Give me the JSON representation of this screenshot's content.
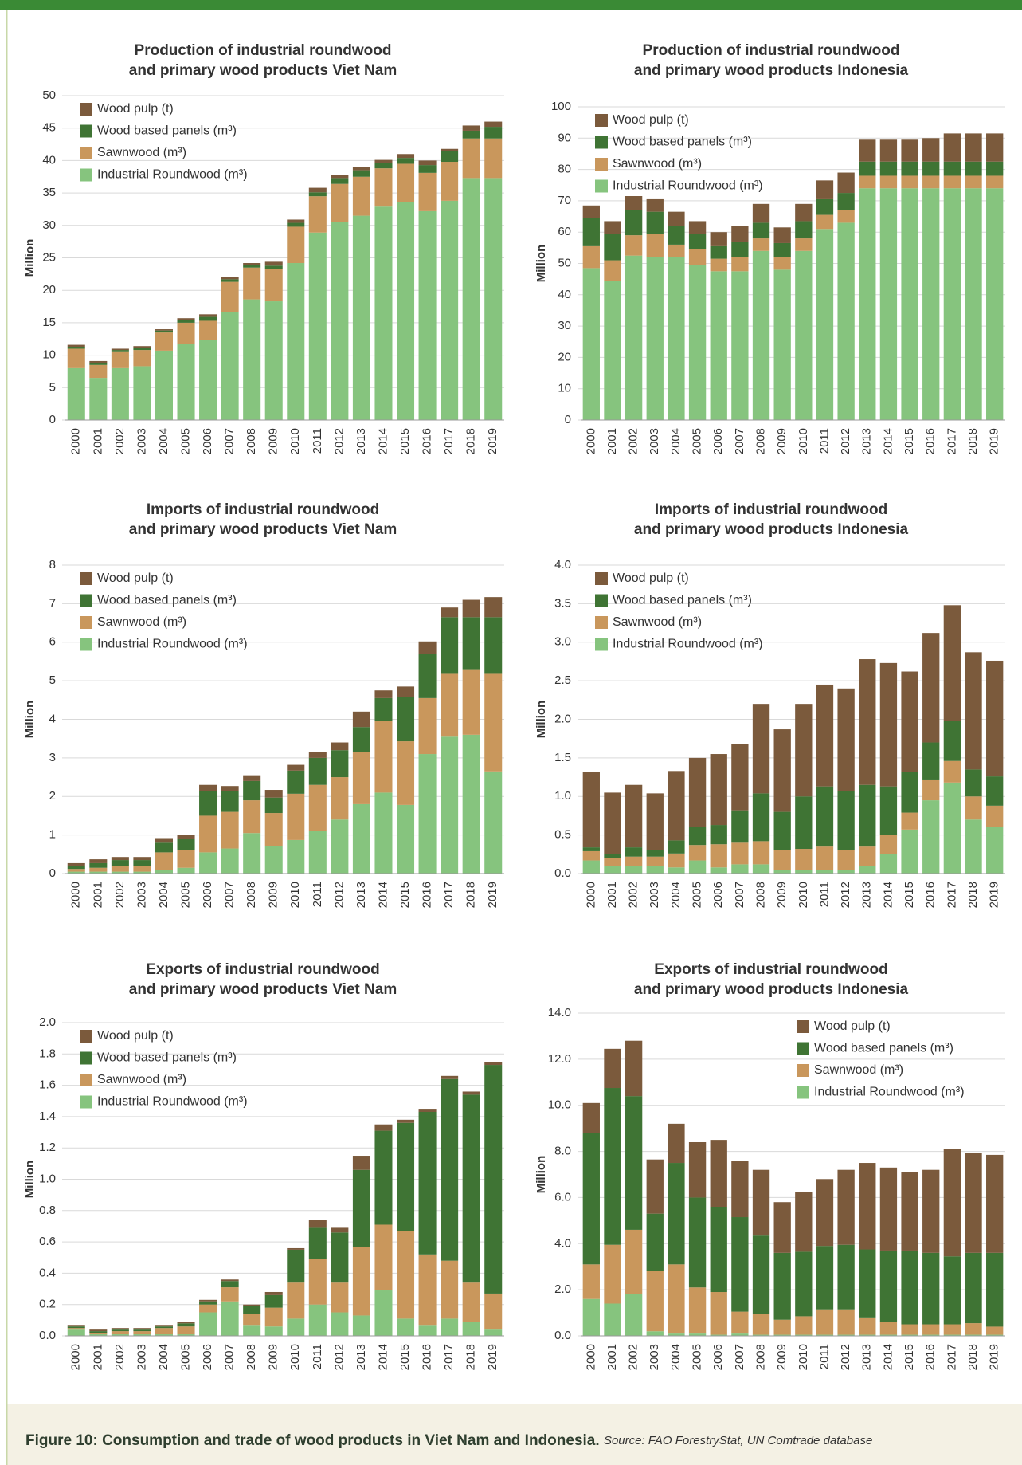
{
  "chart_data": [
    {
      "type": "bar",
      "stacked": true,
      "title": [
        "Production of industrial roundwood",
        "and primary wood products Viet Nam"
      ],
      "ylabel": "Million",
      "legend": "upper left",
      "grid": true,
      "categories": [
        "2000",
        "2001",
        "2002",
        "2003",
        "2004",
        "2005",
        "2006",
        "2007",
        "2008",
        "2009",
        "2010",
        "2011",
        "2012",
        "2013",
        "2014",
        "2015",
        "2016",
        "2017",
        "2018",
        "2019"
      ],
      "ylim": [
        0,
        50
      ],
      "yticks": [
        0,
        5,
        10,
        15,
        20,
        25,
        30,
        35,
        40,
        45,
        50
      ],
      "series": [
        {
          "name": "Industrial Roundwood (m³)",
          "color": "#86c47e",
          "values": [
            8.0,
            6.5,
            8.0,
            8.3,
            10.7,
            11.7,
            12.3,
            16.6,
            18.6,
            18.3,
            24.2,
            28.9,
            30.5,
            31.5,
            32.9,
            33.6,
            32.2,
            33.8,
            37.3,
            37.3
          ]
        },
        {
          "name": "Sawnwood (m³)",
          "color": "#c9975c",
          "values": [
            3.0,
            2.0,
            2.6,
            2.5,
            2.8,
            3.3,
            3.0,
            4.7,
            4.9,
            5.0,
            5.6,
            5.6,
            5.9,
            6.0,
            5.9,
            5.9,
            5.9,
            6.0,
            6.1,
            6.1
          ]
        },
        {
          "name": "Wood based panels (m³)",
          "color": "#3f7434",
          "values": [
            0.3,
            0.3,
            0.2,
            0.3,
            0.3,
            0.4,
            0.6,
            0.4,
            0.4,
            0.5,
            0.6,
            0.6,
            0.9,
            1.0,
            0.8,
            0.9,
            1.2,
            1.6,
            1.2,
            1.8
          ]
        },
        {
          "name": "Wood pulp (t)",
          "color": "#7b5a3c",
          "values": [
            0.3,
            0.3,
            0.2,
            0.3,
            0.2,
            0.3,
            0.4,
            0.3,
            0.3,
            0.6,
            0.5,
            0.7,
            0.5,
            0.5,
            0.5,
            0.6,
            0.7,
            0.4,
            0.8,
            0.8
          ]
        }
      ]
    },
    {
      "type": "bar",
      "stacked": true,
      "title": [
        "Production of industrial roundwood",
        "and primary wood products Indonesia"
      ],
      "ylabel": "Million",
      "legend": "upper left",
      "grid": true,
      "categories": [
        "2000",
        "2001",
        "2002",
        "2003",
        "2004",
        "2005",
        "2006",
        "2007",
        "2008",
        "2009",
        "2010",
        "2011",
        "2012",
        "2013",
        "2014",
        "2015",
        "2016",
        "2017",
        "2018",
        "2019"
      ],
      "ylim": [
        0,
        100
      ],
      "yticks": [
        0,
        10,
        20,
        30,
        40,
        50,
        60,
        70,
        80,
        90,
        100
      ],
      "series": [
        {
          "name": "Industrial Roundwood (m³)",
          "color": "#86c47e",
          "values": [
            48.5,
            44.5,
            52.5,
            52,
            52,
            49.5,
            47.5,
            47.5,
            54,
            48,
            54,
            61,
            63,
            74,
            74,
            74,
            74,
            74,
            74,
            74
          ]
        },
        {
          "name": "Sawnwood (m³)",
          "color": "#c9975c",
          "values": [
            7,
            6.5,
            6.5,
            7.5,
            4,
            5,
            4,
            4.5,
            4,
            4,
            4,
            4.5,
            4,
            4,
            4,
            4,
            4,
            4,
            4,
            4
          ]
        },
        {
          "name": "Wood based panels (m³)",
          "color": "#3f7434",
          "values": [
            9,
            8.5,
            8,
            7,
            6,
            5,
            4,
            5,
            5,
            4.5,
            5.5,
            5,
            5.5,
            4.5,
            4.5,
            4.5,
            4.5,
            4.5,
            4.5,
            4.5
          ]
        },
        {
          "name": "Wood pulp (t)",
          "color": "#7b5a3c",
          "values": [
            4,
            4,
            4.5,
            4,
            4.5,
            4,
            4.5,
            5,
            6,
            5,
            5.5,
            6,
            6.5,
            7,
            7,
            7,
            7.5,
            9,
            9,
            9
          ]
        }
      ]
    },
    {
      "type": "bar",
      "stacked": true,
      "title": [
        "Imports of industrial roundwood",
        "and primary wood products Viet Nam"
      ],
      "ylabel": "Million",
      "legend": "upper left",
      "grid": true,
      "categories": [
        "2000",
        "2001",
        "2002",
        "2003",
        "2004",
        "2005",
        "2006",
        "2007",
        "2008",
        "2009",
        "2010",
        "2011",
        "2012",
        "2013",
        "2014",
        "2015",
        "2016",
        "2017",
        "2018",
        "2019"
      ],
      "ylim": [
        0,
        8
      ],
      "yticks": [
        0,
        1,
        2,
        3,
        4,
        5,
        6,
        7,
        8
      ],
      "series": [
        {
          "name": "Industrial Roundwood (m³)",
          "color": "#86c47e",
          "values": [
            0.05,
            0.05,
            0.05,
            0.05,
            0.1,
            0.15,
            0.55,
            0.65,
            1.05,
            0.72,
            0.87,
            1.1,
            1.4,
            1.8,
            2.1,
            1.78,
            3.1,
            3.55,
            3.6,
            2.65
          ]
        },
        {
          "name": "Sawnwood (m³)",
          "color": "#c9975c",
          "values": [
            0.07,
            0.1,
            0.15,
            0.15,
            0.45,
            0.45,
            0.95,
            0.95,
            0.85,
            0.85,
            1.2,
            1.2,
            1.1,
            1.35,
            1.85,
            1.65,
            1.45,
            1.65,
            1.7,
            2.55
          ]
        },
        {
          "name": "Wood based panels (m³)",
          "color": "#3f7434",
          "values": [
            0.08,
            0.12,
            0.15,
            0.15,
            0.25,
            0.3,
            0.65,
            0.55,
            0.5,
            0.4,
            0.6,
            0.7,
            0.7,
            0.65,
            0.6,
            1.15,
            1.15,
            1.45,
            1.35,
            1.45
          ]
        },
        {
          "name": "Wood pulp (t)",
          "color": "#7b5a3c",
          "values": [
            0.07,
            0.1,
            0.08,
            0.08,
            0.12,
            0.1,
            0.15,
            0.12,
            0.15,
            0.2,
            0.15,
            0.15,
            0.2,
            0.4,
            0.2,
            0.27,
            0.32,
            0.25,
            0.45,
            0.52
          ]
        }
      ]
    },
    {
      "type": "bar",
      "stacked": true,
      "title": [
        "Imports of industrial roundwood",
        "and primary wood products Indonesia"
      ],
      "ylabel": "Million",
      "legend": "upper left",
      "grid": true,
      "categories": [
        "2000",
        "2001",
        "2002",
        "2003",
        "2004",
        "2005",
        "2006",
        "2007",
        "2008",
        "2009",
        "2010",
        "2011",
        "2012",
        "2013",
        "2014",
        "2015",
        "2016",
        "2017",
        "2018",
        "2019"
      ],
      "ylim": [
        0,
        4
      ],
      "yticks": [
        {
          "value": 0,
          "label": "0.0"
        },
        0.5,
        {
          "value": 1,
          "label": "1.0"
        },
        1.5,
        {
          "value": 2,
          "label": "2.0"
        },
        2.5,
        {
          "value": 3,
          "label": "3.0"
        },
        3.5,
        {
          "value": 4,
          "label": "4.0"
        }
      ],
      "series": [
        {
          "name": "Industrial Roundwood (m³)",
          "color": "#86c47e",
          "values": [
            0.17,
            0.1,
            0.1,
            0.1,
            0.08,
            0.17,
            0.08,
            0.12,
            0.12,
            0.05,
            0.05,
            0.05,
            0.05,
            0.1,
            0.25,
            0.57,
            0.95,
            1.18,
            0.7,
            0.6
          ]
        },
        {
          "name": "Sawnwood (m³)",
          "color": "#c9975c",
          "values": [
            0.12,
            0.1,
            0.12,
            0.12,
            0.18,
            0.2,
            0.3,
            0.28,
            0.3,
            0.25,
            0.27,
            0.3,
            0.25,
            0.25,
            0.25,
            0.22,
            0.27,
            0.28,
            0.3,
            0.28
          ]
        },
        {
          "name": "Wood based panels (m³)",
          "color": "#3f7434",
          "values": [
            0.05,
            0.05,
            0.12,
            0.08,
            0.17,
            0.23,
            0.25,
            0.42,
            0.62,
            0.5,
            0.68,
            0.78,
            0.77,
            0.8,
            0.63,
            0.53,
            0.48,
            0.52,
            0.35,
            0.38
          ]
        },
        {
          "name": "Wood pulp (t)",
          "color": "#7b5a3c",
          "values": [
            0.98,
            0.8,
            0.81,
            0.74,
            0.9,
            0.9,
            0.92,
            0.86,
            1.16,
            1.07,
            1.2,
            1.32,
            1.33,
            1.63,
            1.6,
            1.3,
            1.42,
            1.5,
            1.52,
            1.5
          ]
        }
      ]
    },
    {
      "type": "bar",
      "stacked": true,
      "title": [
        "Exports of industrial roundwood",
        "and primary wood products Viet Nam"
      ],
      "ylabel": "Million",
      "legend": "upper left",
      "grid": true,
      "categories": [
        "2000",
        "2001",
        "2002",
        "2003",
        "2004",
        "2005",
        "2006",
        "2007",
        "2008",
        "2009",
        "2010",
        "2011",
        "2012",
        "2013",
        "2014",
        "2015",
        "2016",
        "2017",
        "2018",
        "2019"
      ],
      "ylim": [
        0,
        2
      ],
      "yticks": [
        {
          "value": 0,
          "label": "0.0"
        },
        0.2,
        0.4,
        0.6,
        0.8,
        {
          "value": 1,
          "label": "1.0"
        },
        1.2,
        1.4,
        1.6,
        1.8,
        {
          "value": 2,
          "label": "2.0"
        }
      ],
      "series": [
        {
          "name": "Industrial Roundwood (m³)",
          "color": "#86c47e",
          "values": [
            0.04,
            0.01,
            0.01,
            0.01,
            0.01,
            0.01,
            0.15,
            0.22,
            0.07,
            0.06,
            0.11,
            0.2,
            0.15,
            0.13,
            0.29,
            0.11,
            0.07,
            0.11,
            0.09,
            0.04
          ]
        },
        {
          "name": "Sawnwood (m³)",
          "color": "#c9975c",
          "values": [
            0.01,
            0.01,
            0.02,
            0.02,
            0.04,
            0.05,
            0.05,
            0.09,
            0.07,
            0.12,
            0.23,
            0.29,
            0.19,
            0.44,
            0.42,
            0.56,
            0.45,
            0.37,
            0.25,
            0.23
          ]
        },
        {
          "name": "Wood based panels (m³)",
          "color": "#3f7434",
          "values": [
            0.01,
            0.01,
            0.01,
            0.01,
            0.01,
            0.02,
            0.02,
            0.04,
            0.05,
            0.08,
            0.21,
            0.2,
            0.32,
            0.49,
            0.6,
            0.69,
            0.91,
            1.16,
            1.2,
            1.46
          ]
        },
        {
          "name": "Wood pulp (t)",
          "color": "#7b5a3c",
          "values": [
            0.01,
            0.01,
            0.01,
            0.01,
            0.01,
            0.01,
            0.01,
            0.01,
            0.01,
            0.02,
            0.01,
            0.05,
            0.03,
            0.09,
            0.04,
            0.02,
            0.02,
            0.02,
            0.02,
            0.02
          ]
        }
      ]
    },
    {
      "type": "bar",
      "stacked": true,
      "title": [
        "Exports of industrial roundwood",
        "and primary wood products Indonesia"
      ],
      "ylabel": "Million",
      "legend": "upper right",
      "grid": true,
      "categories": [
        "2000",
        "2001",
        "2002",
        "2003",
        "2004",
        "2005",
        "2006",
        "2007",
        "2008",
        "2009",
        "2010",
        "2011",
        "2012",
        "2013",
        "2014",
        "2015",
        "2016",
        "2017",
        "2018",
        "2019"
      ],
      "ylim": [
        0,
        14
      ],
      "yticks": [
        {
          "value": 0,
          "label": "0.0"
        },
        {
          "value": 2,
          "label": "2.0"
        },
        {
          "value": 4,
          "label": "4.0"
        },
        {
          "value": 6,
          "label": "6.0"
        },
        {
          "value": 8,
          "label": "8.0"
        },
        {
          "value": 10,
          "label": "10.0"
        },
        {
          "value": 12,
          "label": "12.0"
        },
        {
          "value": 14,
          "label": "14.0"
        }
      ],
      "series": [
        {
          "name": "Industrial Roundwood (m³)",
          "color": "#86c47e",
          "values": [
            1.6,
            1.4,
            1.8,
            0.2,
            0.1,
            0.1,
            0.05,
            0.1,
            0.05,
            0.05,
            0.05,
            0.05,
            0.05,
            0.05,
            0.05,
            0.05,
            0.05,
            0.05,
            0.05,
            0.05
          ]
        },
        {
          "name": "Sawnwood (m³)",
          "color": "#c9975c",
          "values": [
            1.5,
            2.55,
            2.8,
            2.6,
            3.0,
            2.0,
            1.85,
            0.95,
            0.9,
            0.65,
            0.8,
            1.1,
            1.1,
            0.75,
            0.55,
            0.45,
            0.45,
            0.45,
            0.5,
            0.35
          ]
        },
        {
          "name": "Wood based panels (m³)",
          "color": "#3f7434",
          "values": [
            5.7,
            6.8,
            5.8,
            2.5,
            4.4,
            3.9,
            3.7,
            4.1,
            3.4,
            2.9,
            2.8,
            2.75,
            2.8,
            2.95,
            3.1,
            3.2,
            3.1,
            2.95,
            3.05,
            3.2
          ]
        },
        {
          "name": "Wood pulp (t)",
          "color": "#7b5a3c",
          "values": [
            1.3,
            1.7,
            2.4,
            2.35,
            1.7,
            2.4,
            2.9,
            2.45,
            2.85,
            2.2,
            2.6,
            2.9,
            3.25,
            3.75,
            3.6,
            3.4,
            3.6,
            4.65,
            4.35,
            4.25
          ]
        }
      ]
    }
  ],
  "caption": {
    "title": "Figure 10: Consumption and trade of wood products in Viet Nam and Indonesia.",
    "source": "Source: FAO ForestryStat, UN Comtrade database"
  }
}
